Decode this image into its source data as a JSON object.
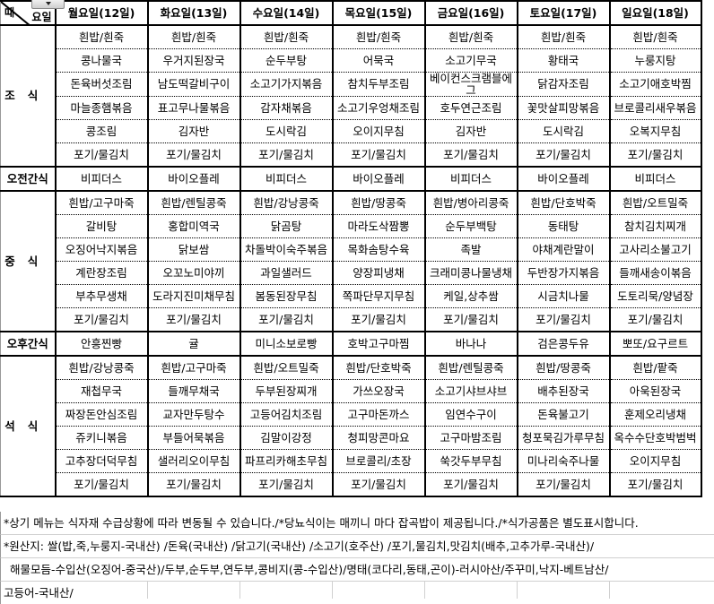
{
  "header": {
    "corner_day": "요일",
    "corner_time": "때",
    "days": [
      "월요일(12일)",
      "화요일(13일)",
      "수요일(14일)",
      "목요일(15일)",
      "금요일(16일)",
      "토요일(17일)",
      "일요일(18일)"
    ]
  },
  "breakfast": {
    "label": "조식",
    "rows": [
      [
        "흰밥/흰죽",
        "흰밥/흰죽",
        "흰밥/흰죽",
        "흰밥/흰죽",
        "흰밥/흰죽",
        "흰밥/흰죽",
        "흰밥/흰죽"
      ],
      [
        "콩나물국",
        "우거지된장국",
        "순두부탕",
        "어묵국",
        "소고기무국",
        "황태국",
        "누룽지탕"
      ],
      [
        "돈육버섯조림",
        "남도떡갈비구이",
        "소고기가지볶음",
        "참치두부조림",
        "베이컨스크램블에그",
        "닭감자조림",
        "소고기애호박찜"
      ],
      [
        "마늘종햄볶음",
        "표고무나물볶음",
        "감자채볶음",
        "소고기우엉채조림",
        "호두연근조림",
        "꽃맛살피망볶음",
        "브로콜리새우볶음"
      ],
      [
        "콩조림",
        "김자반",
        "도시락김",
        "오이지무침",
        "김자반",
        "도시락김",
        "오복지무침"
      ],
      [
        "포기/물김치",
        "포기/물김치",
        "포기/물김치",
        "포기/물김치",
        "포기/물김치",
        "포기/물김치",
        "포기/물김치"
      ]
    ]
  },
  "morning_snack": {
    "label": "오전간식",
    "items": [
      "비피더스",
      "바이오플레",
      "비피더스",
      "바이오플레",
      "비피더스",
      "바이오플레",
      "비피더스"
    ]
  },
  "lunch": {
    "label": "중식",
    "rows": [
      [
        "흰밥/고구마죽",
        "흰밥/렌틸콩죽",
        "흰밥/강낭콩죽",
        "흰밥/땅콩죽",
        "흰밥/병아리콩죽",
        "흰밥/단호박죽",
        "흰밥/오트밀죽"
      ],
      [
        "갈비탕",
        "홍합미역국",
        "닭곰탕",
        "마라도삭짬뽕",
        "순두부백탕",
        "동태탕",
        "참치김치찌개"
      ],
      [
        "오징어낙지볶음",
        "닭보쌈",
        "차돌박이숙주볶음",
        "목화솜탕수육",
        "족발",
        "야채계란말이",
        "고사리소불고기"
      ],
      [
        "계란장조림",
        "오꼬노미야끼",
        "과일샐러드",
        "양장피냉채",
        "크래미콩나물냉채",
        "두반장가지볶음",
        "들깨새송이볶음"
      ],
      [
        "부추무생채",
        "도라지진미채무침",
        "봄동된장무침",
        "쪽파단무지무침",
        "케일,상추쌈",
        "시금치나물",
        "도토리묵/양념장"
      ],
      [
        "포기/물김치",
        "포기/물김치",
        "포기/물김치",
        "포기/물김치",
        "포기/물김치",
        "포기/물김치",
        "포기/물김치"
      ]
    ]
  },
  "afternoon_snack": {
    "label": "오후간식",
    "items": [
      "안흥찐빵",
      "귤",
      "미니소보로빵",
      "호박고구마찜",
      "바나나",
      "검은콩두유",
      "뽀또/요구르트"
    ]
  },
  "dinner": {
    "label": "석식",
    "rows": [
      [
        "흰밥/강낭콩죽",
        "흰밥/고구마죽",
        "흰밥/오트밀죽",
        "흰밥/단호박죽",
        "흰밥/렌틸콩죽",
        "흰밥/땅콩죽",
        "흰밥/팥죽"
      ],
      [
        "재첩무국",
        "들깨무채국",
        "두부된장찌개",
        "가쓰오장국",
        "소고기샤브샤브",
        "배추된장국",
        "아욱된장국"
      ],
      [
        "짜장돈안심조림",
        "교자만두탕수",
        "고등어김치조림",
        "고구마돈까스",
        "임연수구이",
        "돈육불고기",
        "훈제오리냉채"
      ],
      [
        "쥬키니볶음",
        "부들어묵볶음",
        "김말이강정",
        "청피망콘마요",
        "고구마밤조림",
        "청포묵김가루무침",
        "옥수수단호박범벅"
      ],
      [
        "고추장더덕무침",
        "샐러리오이무침",
        "파프리카해초무침",
        "브로콜리/초장",
        "쑥갓두부무침",
        "미나리숙주나물",
        "오이지무침"
      ],
      [
        "포기/물김치",
        "포기/물김치",
        "포기/물김치",
        "포기/물김치",
        "포기/물김치",
        "포기/물김치",
        "포기/물김치"
      ]
    ]
  },
  "notes": [
    "*상기 메뉴는 식자재 수급상황에  따라 변동될 수 있습니다./*당뇨식이는 매끼니 마다 잡곡밥이 제공됩니다./*식가공품은 별도표시합니다.",
    "*원산지: 쌀(밥,죽,누룽지-국내산) /돈육(국내산) /닭고기(국내산) /소고기(호주산) /포기,물김치,맛김치(배추,고추가루-국내산)/",
    "해물모듬-수입산(오징어-중국산)/두부,순두부,연두부,콩비지(콩-수입산)/명태(코다리,동태,곤이)-러시아산/주꾸미,낙지-베트남산/",
    "고등어-국내산/"
  ]
}
